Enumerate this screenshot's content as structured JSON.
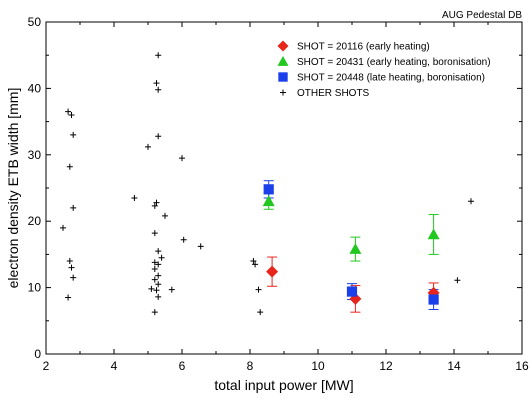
{
  "chart_data": {
    "type": "scatter",
    "annotation": "AUG Pedestal DB",
    "xlabel": "total input power [MW]",
    "ylabel": "electron density ETB width [mm]",
    "xlim": [
      2,
      16
    ],
    "ylim": [
      0,
      50
    ],
    "xticks": [
      2,
      4,
      6,
      8,
      10,
      12,
      14,
      16
    ],
    "yticks": [
      0,
      10,
      20,
      30,
      40,
      50
    ],
    "legend_position": "top-right",
    "series": [
      {
        "name": "SHOT = 20116 (early heating)",
        "marker": "diamond",
        "color": "#e8251b",
        "points": [
          {
            "x": 8.65,
            "y": 12.4,
            "err": 2.2
          },
          {
            "x": 11.1,
            "y": 8.3,
            "err": 2.0
          },
          {
            "x": 13.4,
            "y": 9.2,
            "err": 1.5
          }
        ]
      },
      {
        "name": "SHOT = 20431 (early heating, boronisation)",
        "marker": "triangle",
        "color": "#22c71f",
        "points": [
          {
            "x": 8.55,
            "y": 23.0,
            "err": 1.2
          },
          {
            "x": 11.1,
            "y": 15.8,
            "err": 1.8
          },
          {
            "x": 13.4,
            "y": 18.0,
            "err": 3.0
          }
        ]
      },
      {
        "name": "SHOT = 20448 (late heating, boronisation)",
        "marker": "square",
        "color": "#1b3fe8",
        "points": [
          {
            "x": 8.55,
            "y": 24.8,
            "err": 1.3
          },
          {
            "x": 11.0,
            "y": 9.4,
            "err": 1.2
          },
          {
            "x": 13.4,
            "y": 8.2,
            "err": 1.5
          }
        ]
      },
      {
        "name": "OTHER SHOTS",
        "marker": "plus",
        "color": "#000000",
        "points": [
          {
            "x": 2.5,
            "y": 19.0
          },
          {
            "x": 2.65,
            "y": 36.5
          },
          {
            "x": 2.75,
            "y": 36.0
          },
          {
            "x": 2.8,
            "y": 33.0
          },
          {
            "x": 2.7,
            "y": 28.2
          },
          {
            "x": 2.8,
            "y": 22.0
          },
          {
            "x": 2.7,
            "y": 14.0
          },
          {
            "x": 2.75,
            "y": 13.0
          },
          {
            "x": 2.8,
            "y": 11.5
          },
          {
            "x": 2.65,
            "y": 8.5
          },
          {
            "x": 4.6,
            "y": 23.5
          },
          {
            "x": 5.0,
            "y": 31.2
          },
          {
            "x": 5.3,
            "y": 45.0
          },
          {
            "x": 5.25,
            "y": 40.8
          },
          {
            "x": 5.3,
            "y": 39.8
          },
          {
            "x": 5.3,
            "y": 32.8
          },
          {
            "x": 5.2,
            "y": 22.3
          },
          {
            "x": 5.25,
            "y": 22.8
          },
          {
            "x": 5.5,
            "y": 20.8
          },
          {
            "x": 5.2,
            "y": 18.2
          },
          {
            "x": 5.3,
            "y": 15.5
          },
          {
            "x": 5.4,
            "y": 14.5
          },
          {
            "x": 5.2,
            "y": 13.8
          },
          {
            "x": 5.3,
            "y": 13.5
          },
          {
            "x": 5.2,
            "y": 12.8
          },
          {
            "x": 5.3,
            "y": 11.8
          },
          {
            "x": 5.2,
            "y": 11.2
          },
          {
            "x": 5.3,
            "y": 10.5
          },
          {
            "x": 5.1,
            "y": 9.8
          },
          {
            "x": 5.25,
            "y": 9.6
          },
          {
            "x": 5.7,
            "y": 9.7
          },
          {
            "x": 5.3,
            "y": 8.6
          },
          {
            "x": 5.2,
            "y": 6.3
          },
          {
            "x": 6.0,
            "y": 29.5
          },
          {
            "x": 6.05,
            "y": 17.2
          },
          {
            "x": 6.55,
            "y": 16.2
          },
          {
            "x": 8.1,
            "y": 14.0
          },
          {
            "x": 8.15,
            "y": 13.5
          },
          {
            "x": 8.25,
            "y": 9.7
          },
          {
            "x": 8.3,
            "y": 6.3
          },
          {
            "x": 14.1,
            "y": 11.1
          },
          {
            "x": 14.5,
            "y": 23.0
          }
        ]
      }
    ]
  }
}
